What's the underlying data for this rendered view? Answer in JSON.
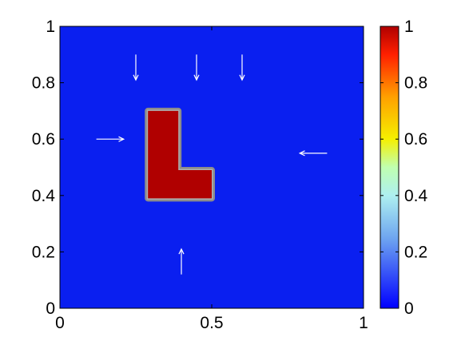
{
  "chart_data": {
    "type": "heatmap",
    "title": "",
    "xlabel": "",
    "ylabel": "",
    "xlim": [
      0,
      1
    ],
    "ylim": [
      0,
      1
    ],
    "x_ticks": [
      0,
      0.5,
      1
    ],
    "x_tick_labels": [
      "0",
      "0.5",
      "1"
    ],
    "y_ticks": [
      0,
      0.2,
      0.4,
      0.6,
      0.8,
      1
    ],
    "y_tick_labels": [
      "0",
      "0.2",
      "0.4",
      "0.6",
      "0.8",
      "1"
    ],
    "background_value": 0,
    "region": {
      "shape": "L",
      "value": 1,
      "outline_color": "#8c8c8c",
      "polygon": [
        [
          0.29,
          0.39
        ],
        [
          0.5,
          0.39
        ],
        [
          0.5,
          0.49
        ],
        [
          0.39,
          0.49
        ],
        [
          0.39,
          0.7
        ],
        [
          0.29,
          0.7
        ]
      ]
    },
    "arrows": [
      {
        "x": 0.25,
        "y": 0.9,
        "dx": 0,
        "dy": -0.09
      },
      {
        "x": 0.45,
        "y": 0.9,
        "dx": 0,
        "dy": -0.09
      },
      {
        "x": 0.6,
        "y": 0.9,
        "dx": 0,
        "dy": -0.09
      },
      {
        "x": 0.12,
        "y": 0.6,
        "dx": 0.09,
        "dy": 0
      },
      {
        "x": 0.88,
        "y": 0.55,
        "dx": -0.09,
        "dy": 0
      },
      {
        "x": 0.4,
        "y": 0.12,
        "dx": 0,
        "dy": 0.09
      }
    ],
    "colorbar": {
      "range": [
        0,
        1
      ],
      "ticks": [
        0,
        0.2,
        0.4,
        0.6,
        0.8,
        1
      ],
      "tick_labels": [
        "0",
        "0.2",
        "0.4",
        "0.6",
        "0.8",
        "1"
      ],
      "colormap": "jet",
      "stops": [
        {
          "v": 0.0,
          "c": "#0000ff"
        },
        {
          "v": 0.25,
          "c": "#6fa6f0"
        },
        {
          "v": 0.4,
          "c": "#aef0f0"
        },
        {
          "v": 0.5,
          "c": "#c0ffb0"
        },
        {
          "v": 0.6,
          "c": "#f5f000"
        },
        {
          "v": 0.75,
          "c": "#ffa000"
        },
        {
          "v": 0.9,
          "c": "#ff2000"
        },
        {
          "v": 1.0,
          "c": "#b00000"
        }
      ]
    },
    "colors": {
      "background": "#0a1ff0",
      "region_fill": "#b00000",
      "arrow": "#ffffff"
    }
  }
}
